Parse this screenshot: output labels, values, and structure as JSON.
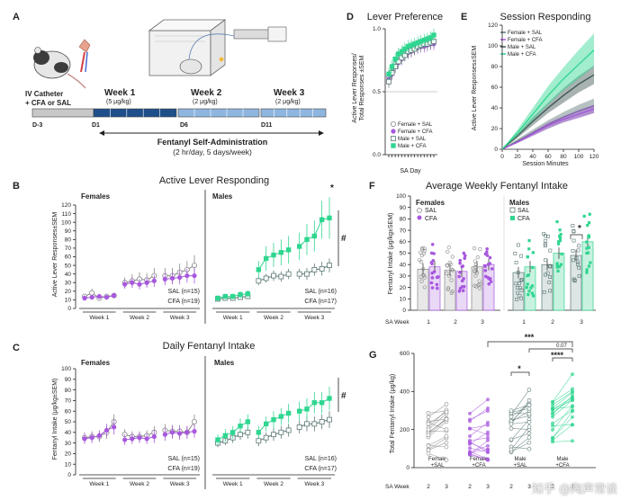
{
  "colors": {
    "female_sal": "#888888",
    "female_cfa": "#a857de",
    "male_sal": "#5b7775",
    "male_cfa": "#2fd690",
    "week_dark": "#1f4f8a",
    "week_light": "#8fb6df"
  },
  "panel_a": {
    "letter": "A",
    "catheter_line1": "IV Catheter",
    "catheter_line2": "+ CFA or SAL",
    "week1": "Week 1",
    "week1_dose": "(5 μg/kg)",
    "week2": "Week 2",
    "week2_dose": "(2 μg/kg)",
    "week3": "Week 3",
    "week3_dose": "(2 μg/kg)",
    "d_minus3": "D-3",
    "d1": "D1",
    "d6": "D6",
    "d11": "D11",
    "selfadmin": "Fentanyl Self-Administration",
    "schedule": "(2 hr/day, 5 days/week)"
  },
  "panel_b": {
    "letter": "B",
    "title": "Active Lever Responding",
    "ylabel": "Active Lever Responses±SEM",
    "females": "Females",
    "males": "Males",
    "sal_f": "SAL (n=15)",
    "cfa_f": "CFA (n=19)",
    "sal_m": "SAL (n=16)",
    "cfa_m": "CFA (n=17)",
    "star": "*",
    "hash": "#",
    "weeks": [
      "Week 1",
      "Week 2",
      "Week 3"
    ]
  },
  "panel_c": {
    "letter": "C",
    "title": "Daily Fentanyl Intake",
    "ylabel": "Fentanyl Intake (μg/kg±SEM)",
    "females": "Females",
    "males": "Males",
    "sal_f": "SAL (n=15)",
    "cfa_f": "CFA (n=19)",
    "sal_m": "SAL (n=16)",
    "cfa_m": "CFA (n=17)",
    "hash": "#",
    "weeks": [
      "Week 1",
      "Week 2",
      "Week 3"
    ]
  },
  "panel_d": {
    "letter": "D",
    "title": "Lever Preference",
    "ylabel_1": "Active Lever Responses/",
    "ylabel_2": "Total Responses ±SEM",
    "xlabel": "SA Day",
    "legend": [
      "Female + SAL",
      "Female + CFA",
      "Male + SAL",
      "Male + CFA"
    ]
  },
  "panel_e": {
    "letter": "E",
    "title": "Session Responding",
    "ylabel": "Active Lever Responses±SEM",
    "xlabel": "Session Minutes",
    "legend": [
      "Female + SAL",
      "Female + CFA",
      "Male + SAL",
      "Male + CFA"
    ]
  },
  "panel_f": {
    "letter": "F",
    "title": "Average Weekly Fentanyl Intake",
    "ylabel": "Fentanyl Intake (μg/kg±SEM)",
    "females": "Females",
    "males": "Males",
    "sal": "SAL",
    "cfa": "CFA",
    "xhead": "SA Week",
    "star": "*"
  },
  "panel_g": {
    "letter": "G",
    "ylabel": "Total Fentanyl Intake (μg/kg)",
    "xhead": "SA Week",
    "sig_top": "***",
    "sig_p": "0.07",
    "sig_male": "*",
    "sig_cfa": "****",
    "groups": [
      "Female\n+SAL",
      "Female\n+CFA",
      "Male\n+SAL",
      "Male\n+CFA"
    ]
  },
  "watermark": "知乎 @陶声常谈",
  "chart_data": [
    {
      "id": "B",
      "type": "line",
      "title": "Active Lever Responding",
      "ylabel": "Active Lever Responses±SEM",
      "ylim": [
        0,
        120
      ],
      "yticks": [
        0,
        10,
        20,
        30,
        40,
        50,
        60,
        70,
        80,
        90,
        100,
        110,
        120
      ],
      "x": [
        1,
        2,
        3,
        4,
        5,
        6,
        7,
        8,
        9,
        10,
        11,
        12,
        13,
        14,
        15
      ],
      "xticklabels": [
        "Week 1",
        "Week 2",
        "Week 3"
      ],
      "series": [
        {
          "name": "Female SAL",
          "values": [
            14,
            18,
            12,
            14,
            15,
            30,
            32,
            34,
            33,
            38,
            38,
            38,
            42,
            45,
            50
          ],
          "err": [
            3,
            5,
            3,
            3,
            3,
            6,
            8,
            8,
            8,
            9,
            9,
            9,
            10,
            10,
            12
          ]
        },
        {
          "name": "Female CFA",
          "values": [
            12,
            13,
            14,
            13,
            15,
            28,
            30,
            28,
            30,
            32,
            34,
            35,
            36,
            38,
            38
          ],
          "err": [
            3,
            3,
            3,
            3,
            3,
            5,
            6,
            6,
            6,
            7,
            7,
            7,
            8,
            8,
            9
          ]
        },
        {
          "name": "Male SAL",
          "values": [
            11,
            12,
            12,
            13,
            14,
            32,
            35,
            38,
            37,
            40,
            40,
            40,
            45,
            46,
            50
          ],
          "err": [
            2,
            2,
            3,
            3,
            3,
            5,
            5,
            6,
            6,
            6,
            6,
            7,
            7,
            8,
            8
          ]
        },
        {
          "name": "Male CFA",
          "values": [
            12,
            14,
            14,
            16,
            17,
            45,
            58,
            62,
            65,
            68,
            72,
            80,
            84,
            103,
            105
          ],
          "err": [
            3,
            3,
            3,
            4,
            4,
            10,
            14,
            14,
            15,
            16,
            16,
            18,
            18,
            22,
            24
          ]
        }
      ]
    },
    {
      "id": "C",
      "type": "line",
      "title": "Daily Fentanyl Intake",
      "ylabel": "Fentanyl Intake (μg/kg±SEM)",
      "ylim": [
        0,
        100
      ],
      "yticks": [
        0,
        10,
        20,
        30,
        40,
        50,
        60,
        70,
        80,
        90,
        100
      ],
      "x": [
        1,
        2,
        3,
        4,
        5,
        6,
        7,
        8,
        9,
        10,
        11,
        12,
        13,
        14,
        15
      ],
      "xticklabels": [
        "Week 1",
        "Week 2",
        "Week 3"
      ],
      "series": [
        {
          "name": "Female SAL",
          "values": [
            35,
            36,
            36,
            40,
            50,
            38,
            36,
            36,
            37,
            40,
            42,
            41,
            41,
            40,
            50
          ],
          "err": [
            5,
            5,
            5,
            6,
            7,
            5,
            5,
            5,
            5,
            6,
            6,
            6,
            6,
            6,
            7
          ]
        },
        {
          "name": "Female CFA",
          "values": [
            34,
            35,
            37,
            42,
            45,
            33,
            34,
            35,
            34,
            36,
            38,
            40,
            39,
            40,
            41
          ],
          "err": [
            5,
            5,
            5,
            6,
            7,
            5,
            5,
            5,
            5,
            6,
            6,
            6,
            6,
            6,
            6
          ]
        },
        {
          "name": "Male SAL",
          "values": [
            30,
            32,
            35,
            38,
            40,
            32,
            35,
            38,
            40,
            42,
            45,
            48,
            48,
            50,
            52
          ],
          "err": [
            4,
            4,
            5,
            5,
            6,
            5,
            5,
            6,
            6,
            6,
            6,
            7,
            7,
            7,
            8
          ]
        },
        {
          "name": "Male CFA",
          "values": [
            33,
            37,
            40,
            46,
            50,
            40,
            48,
            52,
            55,
            58,
            60,
            62,
            68,
            68,
            72
          ],
          "err": [
            5,
            6,
            6,
            7,
            7,
            6,
            7,
            8,
            8,
            9,
            9,
            10,
            10,
            10,
            11
          ]
        }
      ]
    },
    {
      "id": "D",
      "type": "line",
      "title": "Lever Preference",
      "ylabel": "Active Lever Responses/Total Responses ±SEM",
      "xlabel": "SA Day",
      "ylim": [
        0,
        1.0
      ],
      "yticks": [
        0.0,
        0.5,
        1.0
      ],
      "x": [
        1,
        2,
        3,
        4,
        5,
        6,
        7,
        8,
        9,
        10,
        11,
        12,
        13,
        14,
        15
      ],
      "series": [
        {
          "name": "Female + SAL",
          "values": [
            0.62,
            0.66,
            0.72,
            0.75,
            0.78,
            0.8,
            0.82,
            0.84,
            0.85,
            0.86,
            0.86,
            0.87,
            0.88,
            0.89,
            0.9
          ]
        },
        {
          "name": "Female + CFA",
          "values": [
            0.6,
            0.64,
            0.7,
            0.73,
            0.76,
            0.79,
            0.81,
            0.82,
            0.84,
            0.85,
            0.86,
            0.86,
            0.87,
            0.88,
            0.88
          ]
        },
        {
          "name": "Male + SAL",
          "values": [
            0.58,
            0.65,
            0.7,
            0.74,
            0.77,
            0.79,
            0.82,
            0.83,
            0.84,
            0.86,
            0.87,
            0.88,
            0.88,
            0.89,
            0.9
          ]
        },
        {
          "name": "Male + CFA",
          "values": [
            0.64,
            0.7,
            0.76,
            0.8,
            0.82,
            0.84,
            0.86,
            0.87,
            0.88,
            0.89,
            0.9,
            0.91,
            0.92,
            0.93,
            0.95
          ]
        }
      ]
    },
    {
      "id": "E",
      "type": "area",
      "title": "Session Responding",
      "ylabel": "Active Lever Responses±SEM",
      "xlabel": "Session Minutes",
      "ylim": [
        0,
        120
      ],
      "yticks": [
        0,
        20,
        40,
        60,
        80,
        100,
        120
      ],
      "xlim": [
        0,
        120
      ],
      "xticks": [
        0,
        20,
        40,
        60,
        80,
        100,
        120
      ],
      "x": [
        0,
        20,
        40,
        60,
        80,
        100,
        120
      ],
      "series": [
        {
          "name": "Female + SAL",
          "values": [
            0,
            8,
            16,
            24,
            31,
            37,
            42
          ],
          "err": [
            0,
            2,
            3,
            4,
            5,
            6,
            7
          ]
        },
        {
          "name": "Female + CFA",
          "values": [
            0,
            7,
            15,
            23,
            29,
            34,
            39
          ],
          "err": [
            0,
            1,
            2,
            3,
            3,
            4,
            4
          ]
        },
        {
          "name": "Male + SAL",
          "values": [
            0,
            13,
            27,
            40,
            52,
            63,
            72
          ],
          "err": [
            0,
            2,
            4,
            5,
            7,
            8,
            9
          ]
        },
        {
          "name": "Male + CFA",
          "values": [
            0,
            16,
            34,
            52,
            68,
            82,
            96
          ],
          "err": [
            0,
            3,
            6,
            9,
            11,
            14,
            16
          ]
        }
      ]
    },
    {
      "id": "F",
      "type": "bar",
      "title": "Average Weekly Fentanyl Intake",
      "ylabel": "Fentanyl Intake (μg/kg±SEM)",
      "ylim": [
        0,
        100
      ],
      "yticks": [
        0,
        10,
        20,
        30,
        40,
        50,
        60,
        70,
        80,
        90,
        100
      ],
      "categories": [
        "1",
        "2",
        "3"
      ],
      "series": [
        {
          "name": "Female SAL",
          "values": [
            36,
            35,
            38
          ]
        },
        {
          "name": "Female CFA",
          "values": [
            38,
            34,
            40
          ]
        },
        {
          "name": "Male SAL",
          "values": [
            33,
            40,
            48
          ]
        },
        {
          "name": "Male CFA",
          "values": [
            38,
            50,
            60
          ]
        }
      ]
    },
    {
      "id": "G",
      "type": "scatter",
      "ylabel": "Total Fentanyl Intake (μg/kg)",
      "ylim": [
        0,
        600
      ],
      "yticks": [
        0,
        200,
        400,
        600
      ],
      "categories": [
        "Female +SAL",
        "Female +CFA",
        "Male +SAL",
        "Male +CFA"
      ],
      "week_labels": [
        "2",
        "3"
      ],
      "series": [
        {
          "name": "Female +SAL",
          "values": [
            180,
            200
          ]
        },
        {
          "name": "Female +CFA",
          "values": [
            175,
            200
          ]
        },
        {
          "name": "Male +SAL",
          "values": [
            190,
            245
          ]
        },
        {
          "name": "Male +CFA",
          "values": [
            245,
            310
          ]
        }
      ]
    }
  ]
}
